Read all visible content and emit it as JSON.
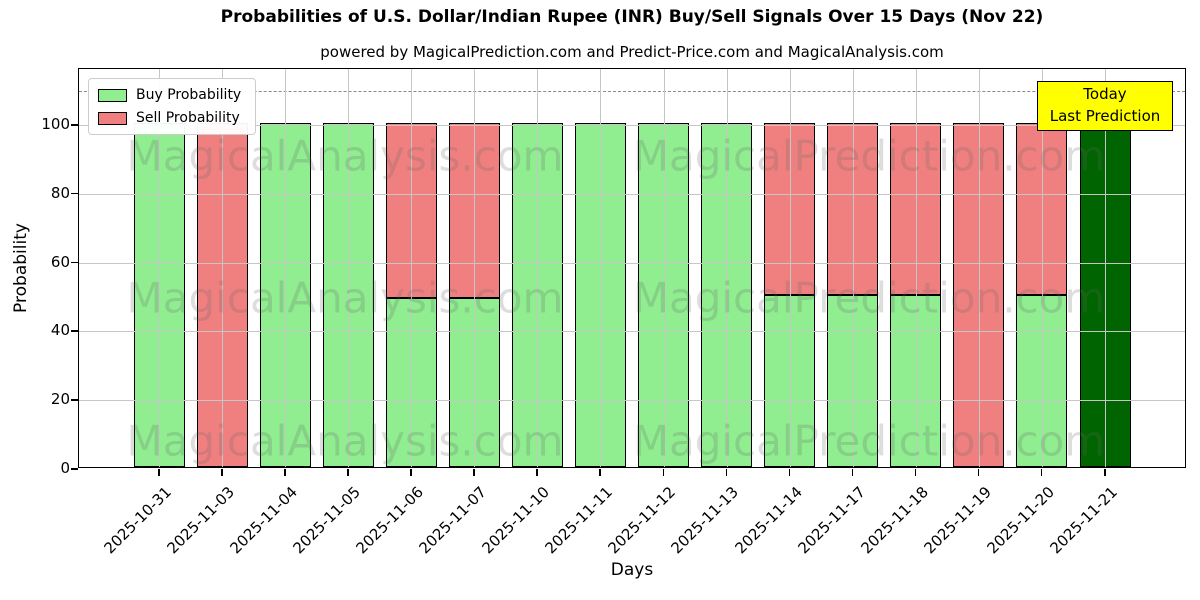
{
  "header": {
    "title": "Probabilities of U.S. Dollar/Indian Rupee (INR) Buy/Sell Signals Over 15 Days (Nov 22)",
    "subtitle": "powered by MagicalPrediction.com and Predict-Price.com and MagicalAnalysis.com"
  },
  "legend": {
    "items": [
      {
        "label": "Buy Probability",
        "color": "#90EE90"
      },
      {
        "label": "Sell Probability",
        "color": "#F08080"
      }
    ]
  },
  "annotation_box": {
    "lines": [
      "Today",
      "Last Prediction"
    ],
    "bg_color": "#FFFF00"
  },
  "watermarks": {
    "left_text": "MagicalAnalysis.com",
    "right_text": "MagicalPrediction.com"
  },
  "axes": {
    "xlabel": "Days",
    "ylabel": "Probability"
  },
  "chart_data": {
    "type": "bar",
    "stacked": true,
    "title": "Probabilities of U.S. Dollar/Indian Rupee (INR) Buy/Sell Signals Over 15 Days (Nov 22)",
    "xlabel": "Days",
    "ylabel": "Probability",
    "ylim": [
      0,
      116.3
    ],
    "yticks": [
      0,
      20,
      40,
      60,
      80,
      100
    ],
    "grid": true,
    "legend_position": "upper left",
    "dashed_line_y": 110,
    "categories": [
      "2025-10-31",
      "2025-11-03",
      "2025-11-04",
      "2025-11-05",
      "2025-11-06",
      "2025-11-07",
      "2025-11-10",
      "2025-11-11",
      "2025-11-12",
      "2025-11-13",
      "2025-11-14",
      "2025-11-17",
      "2025-11-18",
      "2025-11-19",
      "2025-11-20",
      "2025-11-21"
    ],
    "series": [
      {
        "name": "Buy Probability",
        "color": "#90EE90",
        "values": [
          100,
          0,
          100,
          100,
          49,
          49,
          100,
          100,
          100,
          100,
          50,
          50,
          50,
          0,
          50,
          100
        ]
      },
      {
        "name": "Sell Probability",
        "color": "#F08080",
        "values": [
          0,
          100,
          0,
          0,
          51,
          51,
          0,
          0,
          0,
          0,
          50,
          50,
          50,
          100,
          50,
          0
        ]
      }
    ],
    "today_index": 15,
    "today_color": "#006400",
    "grid_color": "#c6c6c6"
  }
}
